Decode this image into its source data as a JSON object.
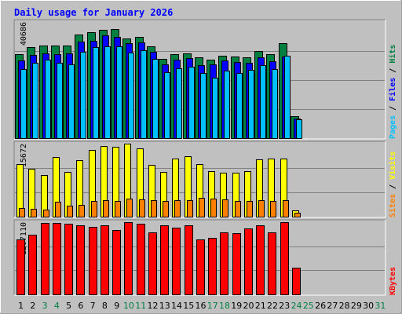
{
  "window": {
    "title": "Daily usage for January 2026",
    "title_color": "#0000ff",
    "background": "#c0c0c0"
  },
  "chart_data": [
    {
      "type": "bar",
      "panel": "hits-files-pages",
      "ymax_label": "40686",
      "ylim": [
        0,
        40686
      ],
      "grid": true,
      "legend_parts": [
        {
          "text": "Pages",
          "color": "#00c0ff"
        },
        {
          "text": " / ",
          "color": "#000000"
        },
        {
          "text": "Files",
          "color": "#0000ff"
        },
        {
          "text": " / ",
          "color": "#000000"
        },
        {
          "text": "Hits",
          "color": "#008040"
        }
      ],
      "categories": [
        1,
        2,
        3,
        4,
        5,
        6,
        7,
        8,
        9,
        10,
        11,
        12,
        13,
        14,
        15,
        16,
        17,
        18,
        19,
        20,
        21,
        22,
        23,
        24,
        25,
        26,
        27,
        28,
        29,
        30,
        31
      ],
      "series": [
        {
          "name": "Hits",
          "color": "#008040",
          "values": [
            29300,
            31900,
            32500,
            32400,
            32400,
            36300,
            37100,
            37900,
            38100,
            35000,
            35500,
            32200,
            27800,
            29500,
            29700,
            28400,
            27600,
            28900,
            28500,
            28400,
            30500,
            29300,
            33300,
            7800,
            0,
            0,
            0,
            0,
            0,
            0,
            0
          ]
        },
        {
          "name": "Files",
          "color": "#0000ff",
          "values": [
            27200,
            29200,
            29800,
            29400,
            29700,
            33900,
            34200,
            35900,
            35500,
            33200,
            33600,
            30300,
            25800,
            27500,
            28000,
            25600,
            25800,
            27100,
            26600,
            26300,
            28400,
            26900,
            28700,
            6800,
            0,
            0,
            0,
            0,
            0,
            0,
            0
          ]
        },
        {
          "name": "Pages",
          "color": "#00c0ff",
          "values": [
            24200,
            26500,
            27600,
            26400,
            25900,
            30200,
            31800,
            32300,
            32300,
            30000,
            30800,
            27700,
            23000,
            24400,
            24900,
            22900,
            21300,
            23700,
            22700,
            23800,
            25600,
            24300,
            28800,
            6500,
            0,
            0,
            0,
            0,
            0,
            0,
            0
          ]
        }
      ]
    },
    {
      "type": "bar",
      "panel": "visits-sites",
      "ymax_label": "15672",
      "ylim": [
        0,
        15672
      ],
      "grid": true,
      "legend_parts": [
        {
          "text": "Sites",
          "color": "#ff8000"
        },
        {
          "text": " / ",
          "color": "#000000"
        },
        {
          "text": "Visits",
          "color": "#ffff00"
        }
      ],
      "categories": [
        1,
        2,
        3,
        4,
        5,
        6,
        7,
        8,
        9,
        10,
        11,
        12,
        13,
        14,
        15,
        16,
        17,
        18,
        19,
        20,
        21,
        22,
        23,
        24,
        25,
        26,
        27,
        28,
        29,
        30,
        31
      ],
      "series": [
        {
          "name": "Visits",
          "color": "#ffff00",
          "values": [
            11300,
            10200,
            9000,
            12800,
            9600,
            12100,
            14300,
            15100,
            15000,
            15672,
            14600,
            11100,
            9600,
            12400,
            13000,
            11300,
            9800,
            9500,
            9500,
            9800,
            12300,
            12500,
            12500,
            1300,
            0,
            0,
            0,
            0,
            0,
            0,
            0
          ]
        },
        {
          "name": "Sites",
          "color": "#ff8000",
          "values": [
            1900,
            1700,
            1600,
            3200,
            2400,
            2500,
            3400,
            3600,
            3400,
            3800,
            3700,
            3600,
            3400,
            3500,
            3500,
            4000,
            3800,
            3700,
            3400,
            3300,
            3500,
            3300,
            3500,
            800,
            0,
            0,
            0,
            0,
            0,
            0,
            0
          ]
        }
      ]
    },
    {
      "type": "bar",
      "panel": "kbytes",
      "ymax_label": "1207110",
      "ylim": [
        0,
        1207110
      ],
      "grid": true,
      "legend_parts": [
        {
          "text": "KBytes",
          "color": "#ff0000"
        }
      ],
      "categories": [
        1,
        2,
        3,
        4,
        5,
        6,
        7,
        8,
        9,
        10,
        11,
        12,
        13,
        14,
        15,
        16,
        17,
        18,
        19,
        20,
        21,
        22,
        23,
        24,
        25,
        26,
        27,
        28,
        29,
        30,
        31
      ],
      "series": [
        {
          "name": "KBytes",
          "color": "#ff0000",
          "values": [
            920000,
            1000000,
            1200000,
            1200000,
            1180000,
            1160000,
            1130000,
            1150000,
            1080000,
            1207110,
            1185000,
            1040000,
            1150000,
            1110000,
            1150000,
            920000,
            945000,
            1030000,
            1020000,
            1100000,
            1150000,
            1030000,
            1207110,
            450000,
            0,
            0,
            0,
            0,
            0,
            0,
            0
          ]
        }
      ]
    }
  ],
  "x_axis": {
    "labels": [
      "1",
      "2",
      "3",
      "4",
      "5",
      "6",
      "7",
      "8",
      "9",
      "10",
      "11",
      "12",
      "13",
      "14",
      "15",
      "16",
      "17",
      "18",
      "19",
      "20",
      "21",
      "22",
      "23",
      "24",
      "25",
      "26",
      "27",
      "28",
      "29",
      "30",
      "31"
    ],
    "colors": [
      "#000000",
      "#000000",
      "#008040",
      "#008040",
      "#000000",
      "#000000",
      "#000000",
      "#000000",
      "#000000",
      "#008040",
      "#008040",
      "#000000",
      "#000000",
      "#000000",
      "#000000",
      "#000000",
      "#008040",
      "#008040",
      "#000000",
      "#000000",
      "#000000",
      "#000000",
      "#000000",
      "#008040",
      "#008040",
      "#000000",
      "#000000",
      "#000000",
      "#000000",
      "#000000",
      "#008040"
    ]
  }
}
